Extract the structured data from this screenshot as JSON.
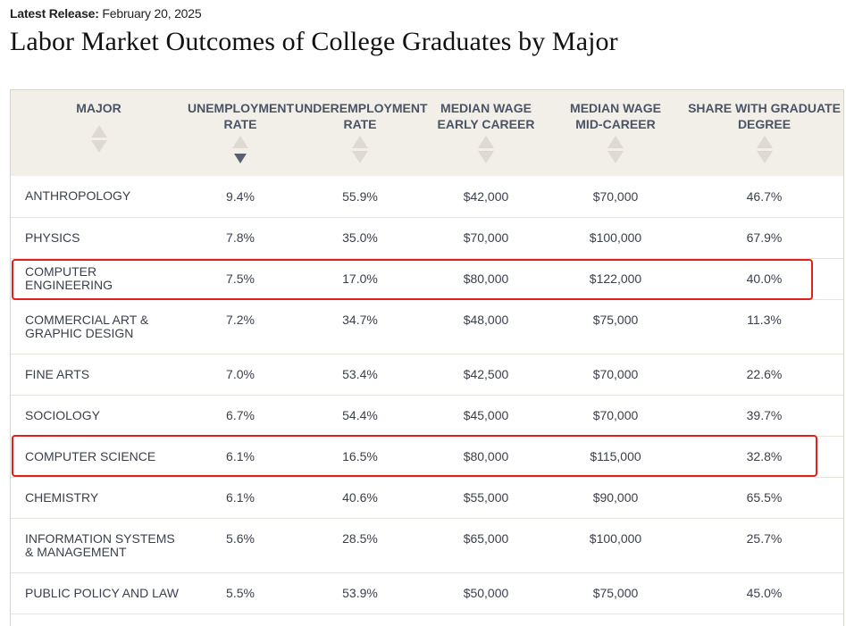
{
  "release": {
    "label": "Latest Release:",
    "date": "February 20, 2025"
  },
  "title": "Labor Market Outcomes of College Graduates by Major",
  "columns": [
    {
      "line1": "MAJOR",
      "line2": ""
    },
    {
      "line1": "UNEMPLOYMENT",
      "line2": "RATE"
    },
    {
      "line1": "UNDEREMPLOYMENT",
      "line2": "RATE"
    },
    {
      "line1": "MEDIAN WAGE",
      "line2": "EARLY CAREER"
    },
    {
      "line1": "MEDIAN WAGE",
      "line2": "MID-CAREER"
    },
    {
      "line1": "SHARE WITH GRADUATE",
      "line2": "DEGREE"
    }
  ],
  "sort": {
    "column": "unemployment_rate",
    "direction": "descending"
  },
  "rows": [
    {
      "major": "ANTHROPOLOGY",
      "unemployment": "9.4%",
      "underemployment": "55.9%",
      "wage_early": "$42,000",
      "wage_mid": "$70,000",
      "grad_share": "46.7%"
    },
    {
      "major": "PHYSICS",
      "unemployment": "7.8%",
      "underemployment": "35.0%",
      "wage_early": "$70,000",
      "wage_mid": "$100,000",
      "grad_share": "67.9%"
    },
    {
      "major": "COMPUTER ENGINEERING",
      "unemployment": "7.5%",
      "underemployment": "17.0%",
      "wage_early": "$80,000",
      "wage_mid": "$122,000",
      "grad_share": "40.0%"
    },
    {
      "major": "COMMERCIAL ART & GRAPHIC DESIGN",
      "unemployment": "7.2%",
      "underemployment": "34.7%",
      "wage_early": "$48,000",
      "wage_mid": "$75,000",
      "grad_share": "11.3%"
    },
    {
      "major": "FINE ARTS",
      "unemployment": "7.0%",
      "underemployment": "53.4%",
      "wage_early": "$42,500",
      "wage_mid": "$70,000",
      "grad_share": "22.6%"
    },
    {
      "major": "SOCIOLOGY",
      "unemployment": "6.7%",
      "underemployment": "54.4%",
      "wage_early": "$45,000",
      "wage_mid": "$70,000",
      "grad_share": "39.7%"
    },
    {
      "major": "COMPUTER SCIENCE",
      "unemployment": "6.1%",
      "underemployment": "16.5%",
      "wage_early": "$80,000",
      "wage_mid": "$115,000",
      "grad_share": "32.8%"
    },
    {
      "major": "CHEMISTRY",
      "unemployment": "6.1%",
      "underemployment": "40.6%",
      "wage_early": "$55,000",
      "wage_mid": "$90,000",
      "grad_share": "65.5%"
    },
    {
      "major": "INFORMATION SYSTEMS & MANAGEMENT",
      "unemployment": "5.6%",
      "underemployment": "28.5%",
      "wage_early": "$65,000",
      "wage_mid": "$100,000",
      "grad_share": "25.7%"
    },
    {
      "major": "PUBLIC POLICY AND LAW",
      "unemployment": "5.5%",
      "underemployment": "53.9%",
      "wage_early": "$50,000",
      "wage_mid": "$75,000",
      "grad_share": "45.0%"
    }
  ],
  "highlighted_majors": [
    "COMPUTER ENGINEERING",
    "COMPUTER SCIENCE"
  ],
  "colors": {
    "highlight": "#e0201b",
    "header_bg": "#f2efe9",
    "sort_active": "#5a6070"
  }
}
